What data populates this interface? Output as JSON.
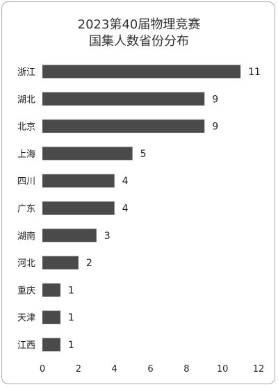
{
  "chart_data": {
    "type": "bar",
    "orientation": "horizontal",
    "title_lines": [
      "2023第40届物理竞赛",
      "国集人数省份分布"
    ],
    "categories": [
      "浙江",
      "湖北",
      "北京",
      "上海",
      "四川",
      "广东",
      "湖南",
      "河北",
      "重庆",
      "天津",
      "江西"
    ],
    "values": [
      11,
      9,
      9,
      5,
      4,
      4,
      3,
      2,
      1,
      1,
      1
    ],
    "xlim": [
      0,
      12
    ],
    "xticks": [
      0,
      2,
      4,
      6,
      8,
      10,
      12
    ],
    "bar_color": "#4a4a4a",
    "grid": false,
    "data_labels": true
  }
}
